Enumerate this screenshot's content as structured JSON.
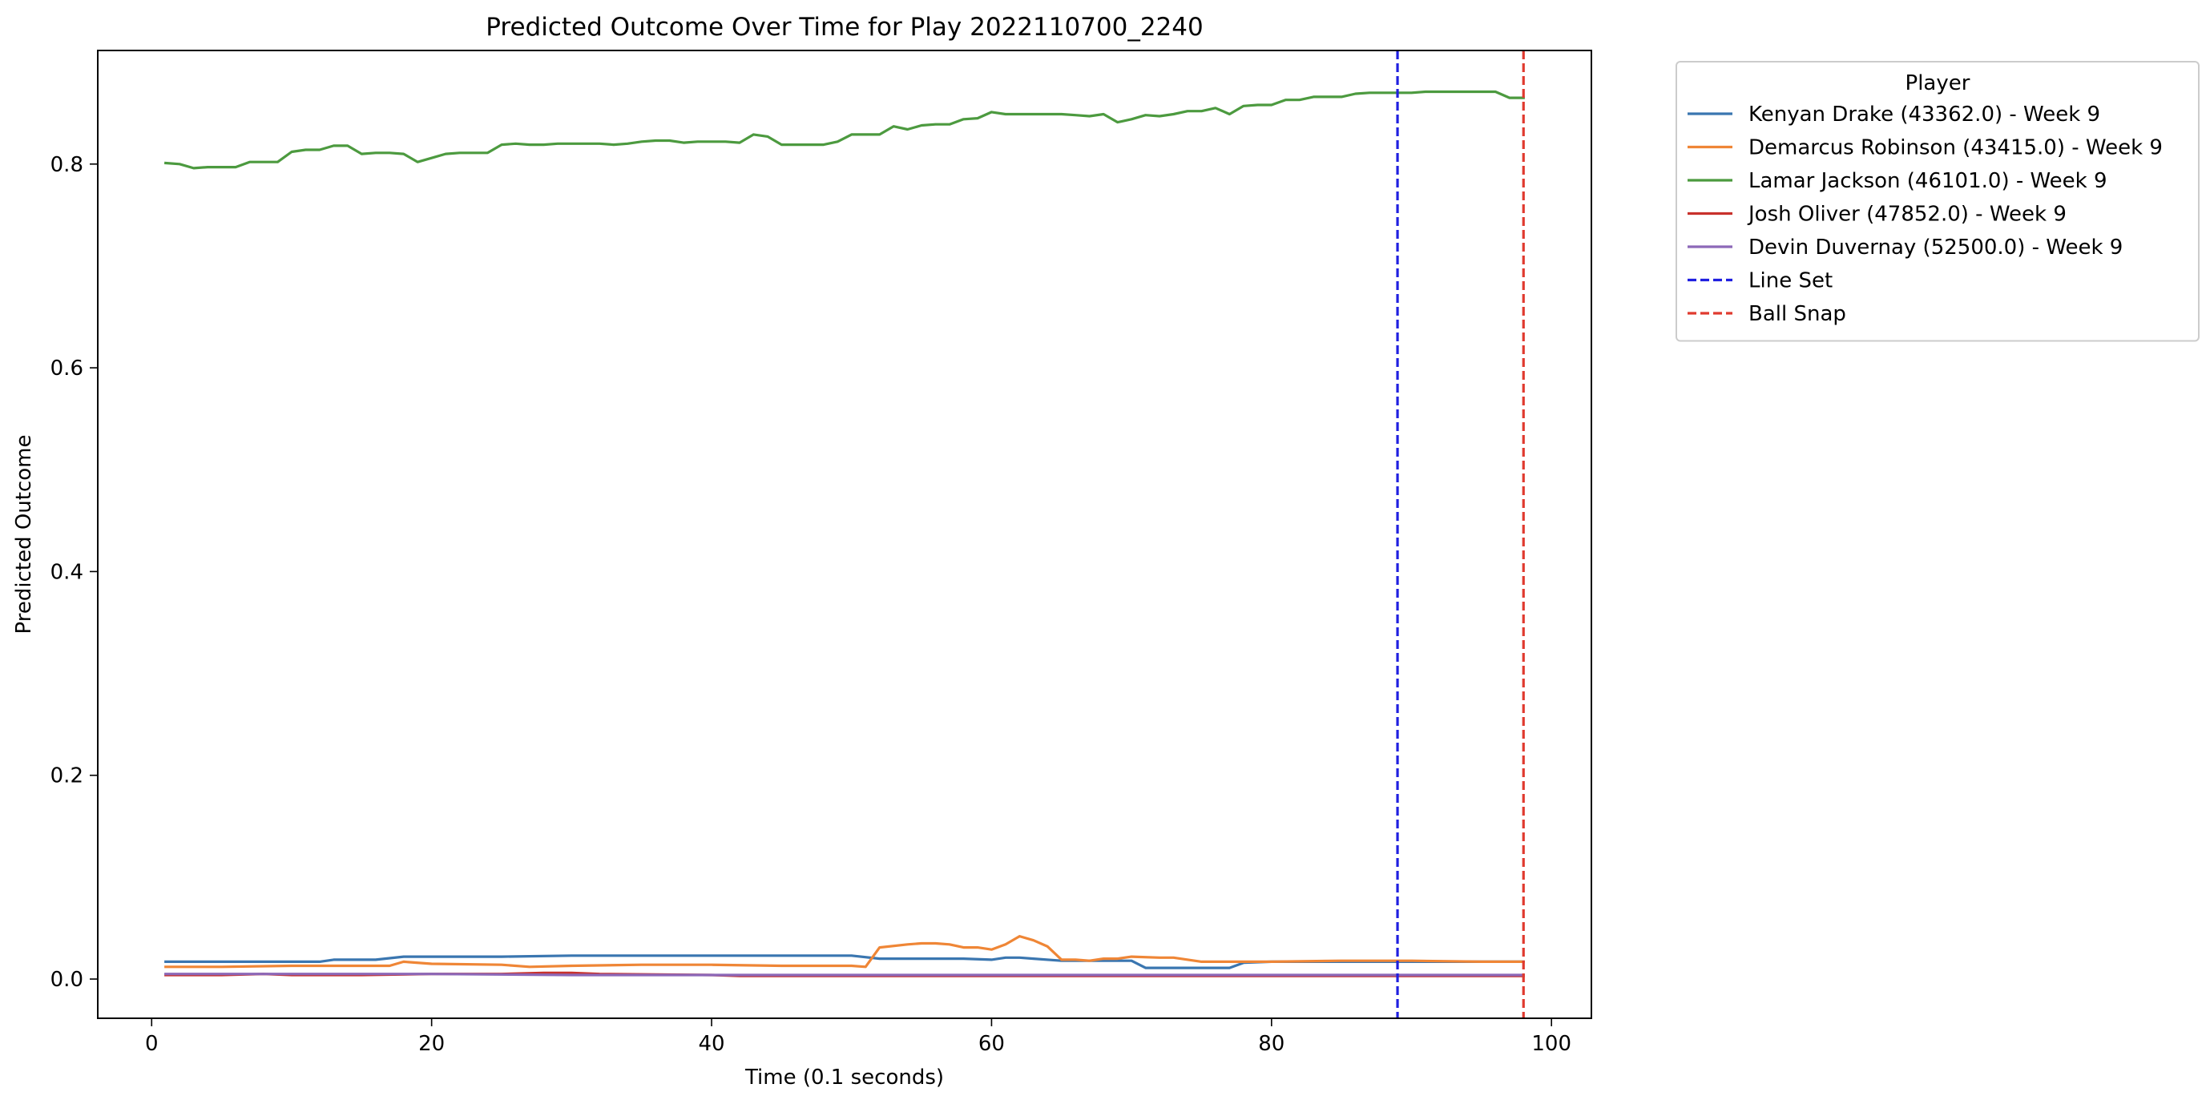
{
  "chart_data": {
    "type": "line",
    "title": "Predicted Outcome Over Time for Play 2022110700_2240",
    "xlabel": "Time (0.1 seconds)",
    "ylabel": "Predicted Outcome",
    "xlim": [
      -3.85,
      102.85
    ],
    "ylim": [
      -0.0385,
      0.9115
    ],
    "xticks": [
      0,
      20,
      40,
      60,
      80,
      100
    ],
    "yticks": [
      0.0,
      0.2,
      0.4,
      0.6,
      0.8
    ],
    "xtick_labels": [
      "0",
      "20",
      "40",
      "60",
      "80",
      "100"
    ],
    "ytick_labels": [
      "0.0",
      "0.2",
      "0.4",
      "0.6",
      "0.8"
    ],
    "grid": false,
    "legend": {
      "title": "Player",
      "placement": "outside upper right"
    },
    "series": [
      {
        "name": "Kenyan Drake (43362.0) - Week 9",
        "color": "#3a76b0",
        "x": [
          1,
          5,
          10,
          12,
          13,
          16,
          18,
          20,
          25,
          30,
          35,
          40,
          45,
          50,
          52,
          55,
          58,
          60,
          61,
          62,
          63,
          65,
          70,
          71,
          72,
          75,
          77,
          78,
          80,
          85,
          90,
          95,
          98
        ],
        "y": [
          0.017,
          0.017,
          0.017,
          0.017,
          0.019,
          0.019,
          0.022,
          0.022,
          0.022,
          0.023,
          0.023,
          0.023,
          0.023,
          0.023,
          0.02,
          0.02,
          0.02,
          0.019,
          0.021,
          0.021,
          0.02,
          0.018,
          0.018,
          0.011,
          0.011,
          0.011,
          0.011,
          0.016,
          0.017,
          0.017,
          0.017,
          0.017,
          0.017
        ]
      },
      {
        "name": "Demarcus Robinson (43415.0) - Week 9",
        "color": "#ef8636",
        "x": [
          1,
          5,
          10,
          15,
          17,
          18,
          20,
          25,
          27,
          30,
          35,
          40,
          45,
          50,
          51,
          52,
          54,
          55,
          56,
          57,
          58,
          59,
          60,
          61,
          62,
          63,
          64,
          65,
          66,
          67,
          68,
          69,
          70,
          72,
          73,
          75,
          80,
          85,
          90,
          95,
          98
        ],
        "y": [
          0.012,
          0.012,
          0.013,
          0.013,
          0.013,
          0.017,
          0.015,
          0.014,
          0.012,
          0.013,
          0.014,
          0.014,
          0.013,
          0.013,
          0.012,
          0.031,
          0.034,
          0.035,
          0.035,
          0.034,
          0.031,
          0.031,
          0.029,
          0.034,
          0.042,
          0.038,
          0.032,
          0.019,
          0.019,
          0.018,
          0.02,
          0.02,
          0.022,
          0.021,
          0.021,
          0.017,
          0.017,
          0.018,
          0.018,
          0.017,
          0.017
        ]
      },
      {
        "name": "Lamar Jackson (46101.0) - Week 9",
        "color": "#4c9a3f",
        "x": [
          1,
          2,
          3,
          4,
          5,
          6,
          7,
          8,
          9,
          10,
          11,
          12,
          13,
          14,
          15,
          16,
          17,
          18,
          19,
          20,
          21,
          22,
          23,
          24,
          25,
          26,
          27,
          28,
          29,
          30,
          31,
          32,
          33,
          34,
          35,
          36,
          37,
          38,
          39,
          40,
          41,
          42,
          43,
          44,
          45,
          46,
          47,
          48,
          49,
          50,
          51,
          52,
          53,
          54,
          55,
          56,
          57,
          58,
          59,
          60,
          61,
          62,
          63,
          64,
          65,
          66,
          67,
          68,
          69,
          70,
          71,
          72,
          73,
          74,
          75,
          76,
          77,
          78,
          79,
          80,
          81,
          82,
          83,
          84,
          85,
          86,
          87,
          88,
          89,
          90,
          91,
          92,
          93,
          94,
          95,
          96,
          97,
          98
        ],
        "y": [
          0.801,
          0.8,
          0.796,
          0.797,
          0.797,
          0.797,
          0.802,
          0.802,
          0.802,
          0.812,
          0.814,
          0.814,
          0.818,
          0.818,
          0.81,
          0.811,
          0.811,
          0.81,
          0.802,
          0.806,
          0.81,
          0.811,
          0.811,
          0.811,
          0.819,
          0.82,
          0.819,
          0.819,
          0.82,
          0.82,
          0.82,
          0.82,
          0.819,
          0.82,
          0.822,
          0.823,
          0.823,
          0.821,
          0.822,
          0.822,
          0.822,
          0.821,
          0.829,
          0.827,
          0.819,
          0.819,
          0.819,
          0.819,
          0.822,
          0.829,
          0.829,
          0.829,
          0.837,
          0.834,
          0.838,
          0.839,
          0.839,
          0.844,
          0.845,
          0.851,
          0.849,
          0.849,
          0.849,
          0.849,
          0.849,
          0.848,
          0.847,
          0.849,
          0.841,
          0.844,
          0.848,
          0.847,
          0.849,
          0.852,
          0.852,
          0.855,
          0.849,
          0.857,
          0.858,
          0.858,
          0.863,
          0.863,
          0.866,
          0.866,
          0.866,
          0.869,
          0.87,
          0.87,
          0.87,
          0.87,
          0.871,
          0.871,
          0.871,
          0.871,
          0.871,
          0.871,
          0.865,
          0.865
        ]
      },
      {
        "name": "Josh Oliver (47852.0) - Week 9",
        "color": "#c8312c",
        "x": [
          1,
          5,
          8,
          10,
          15,
          20,
          25,
          28,
          30,
          32,
          40,
          42,
          50,
          60,
          70,
          80,
          90,
          98
        ],
        "y": [
          0.004,
          0.004,
          0.005,
          0.004,
          0.004,
          0.005,
          0.005,
          0.006,
          0.006,
          0.005,
          0.004,
          0.003,
          0.003,
          0.003,
          0.003,
          0.003,
          0.003,
          0.003
        ]
      },
      {
        "name": "Devin Duvernay (52500.0) - Week 9",
        "color": "#8c68b8",
        "x": [
          1,
          10,
          20,
          30,
          40,
          50,
          60,
          70,
          80,
          90,
          98
        ],
        "y": [
          0.005,
          0.005,
          0.005,
          0.004,
          0.004,
          0.004,
          0.004,
          0.004,
          0.004,
          0.004,
          0.004
        ]
      }
    ],
    "vlines": [
      {
        "name": "Line Set",
        "x": 89,
        "color": "#1f1fe0",
        "style": "dashed"
      },
      {
        "name": "Ball Snap",
        "x": 98,
        "color": "#e03a2f",
        "style": "dashed"
      }
    ]
  }
}
